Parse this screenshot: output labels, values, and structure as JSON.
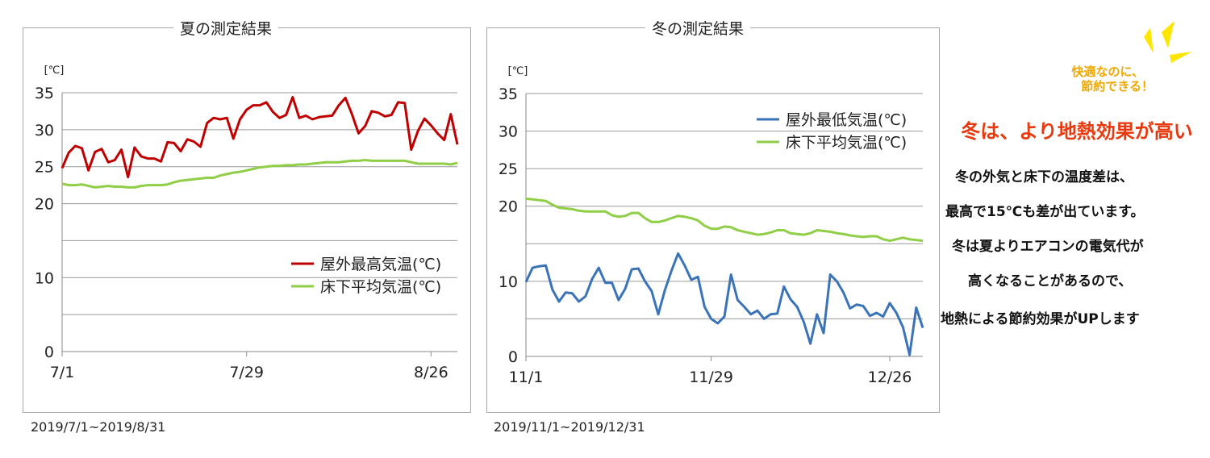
{
  "chart_data": [
    {
      "type": "line",
      "title": "夏の測定結果",
      "y_unit": "[℃]",
      "ylim": [
        0,
        35
      ],
      "y_ticks": [
        "0",
        "10",
        "20",
        "25",
        "30",
        "35"
      ],
      "x_tick_labels": [
        "7/1",
        "7/29",
        "8/26"
      ],
      "x_tick_days": [
        1,
        29,
        57
      ],
      "x_range": [
        1,
        61
      ],
      "grid": true,
      "legend_position": "bottom-right",
      "series": [
        {
          "name": "屋外最高気温(℃)",
          "color": "#c00000",
          "values": [
            24.8,
            26.9,
            27.8,
            27.5,
            24.5,
            27.0,
            27.4,
            25.6,
            25.9,
            27.3,
            23.6,
            27.6,
            26.4,
            26.1,
            26.1,
            25.7,
            28.3,
            28.2,
            27.1,
            28.7,
            28.4,
            27.7,
            30.9,
            31.6,
            31.4,
            31.6,
            28.8,
            31.4,
            32.7,
            33.3,
            33.3,
            33.7,
            32.4,
            31.6,
            32.0,
            34.4,
            31.6,
            31.9,
            31.4,
            31.7,
            31.8,
            31.9,
            33.3,
            34.3,
            32.1,
            29.5,
            30.5,
            32.5,
            32.3,
            31.8,
            32.0,
            33.7,
            33.6,
            27.3,
            29.8,
            31.5,
            30.6,
            29.5,
            28.6,
            32.1,
            28.0
          ]
        },
        {
          "name": "床下平均気温(℃)",
          "color": "#8fce46",
          "values": [
            22.7,
            22.5,
            22.5,
            22.6,
            22.4,
            22.2,
            22.3,
            22.4,
            22.3,
            22.3,
            22.2,
            22.2,
            22.4,
            22.5,
            22.5,
            22.5,
            22.6,
            22.9,
            23.1,
            23.2,
            23.3,
            23.4,
            23.5,
            23.5,
            23.8,
            24.0,
            24.2,
            24.3,
            24.5,
            24.7,
            24.9,
            25.0,
            25.1,
            25.1,
            25.2,
            25.2,
            25.3,
            25.3,
            25.4,
            25.5,
            25.6,
            25.6,
            25.6,
            25.7,
            25.8,
            25.8,
            25.9,
            25.8,
            25.8,
            25.8,
            25.8,
            25.8,
            25.8,
            25.6,
            25.4,
            25.4,
            25.4,
            25.4,
            25.4,
            25.3,
            25.5
          ]
        }
      ]
    },
    {
      "type": "line",
      "title": "冬の測定結果",
      "y_unit": "[℃]",
      "ylim": [
        0,
        35
      ],
      "y_ticks": [
        "0",
        "10",
        "20",
        "25",
        "30",
        "35"
      ],
      "x_tick_labels": [
        "11/1",
        "11/29",
        "12/26"
      ],
      "x_tick_days": [
        1,
        29,
        56
      ],
      "x_range": [
        1,
        61
      ],
      "grid": true,
      "legend_position": "top-right",
      "series": [
        {
          "name": "屋外最低気温(℃)",
          "color": "#3a73b8",
          "values": [
            9.9,
            11.8,
            12.0,
            12.1,
            8.9,
            7.3,
            8.5,
            8.4,
            7.3,
            8.0,
            10.3,
            11.8,
            9.8,
            9.8,
            7.5,
            9.0,
            11.6,
            11.7,
            10.0,
            8.7,
            5.6,
            8.8,
            11.4,
            13.7,
            12.1,
            10.2,
            10.6,
            6.6,
            5.0,
            4.4,
            5.3,
            10.9,
            7.5,
            6.6,
            5.6,
            6.1,
            5.0,
            5.6,
            5.7,
            9.3,
            7.6,
            6.6,
            4.6,
            1.7,
            5.6,
            3.1,
            10.9,
            10.0,
            8.5,
            6.4,
            6.9,
            6.7,
            5.4,
            5.8,
            5.3,
            7.1,
            5.8,
            3.9,
            0.2,
            6.5,
            3.8
          ]
        },
        {
          "name": "床下平均気温(℃)",
          "color": "#8fce46",
          "values": [
            21.0,
            20.9,
            20.8,
            20.7,
            20.2,
            19.8,
            19.7,
            19.6,
            19.4,
            19.3,
            19.3,
            19.3,
            19.3,
            18.8,
            18.6,
            18.7,
            19.1,
            19.1,
            18.4,
            17.9,
            17.9,
            18.1,
            18.4,
            18.7,
            18.6,
            18.4,
            18.1,
            17.4,
            17.0,
            17.0,
            17.3,
            17.2,
            16.8,
            16.6,
            16.4,
            16.2,
            16.3,
            16.5,
            16.8,
            16.8,
            16.4,
            16.3,
            16.2,
            16.4,
            16.8,
            16.7,
            16.6,
            16.4,
            16.3,
            16.1,
            16.0,
            15.9,
            16.0,
            16.0,
            15.6,
            15.4,
            15.6,
            15.8,
            15.6,
            15.5,
            15.4
          ]
        }
      ]
    }
  ],
  "periods": {
    "summer": "2019/7/1~2019/8/31",
    "winter": "2019/11/1~2019/12/31"
  },
  "side": {
    "tagline_line1": "快適なのに、",
    "tagline_line2": "節約できる！",
    "headline": "冬は、より地熱効果が高い",
    "lines": [
      "冬の外気と床下の温度差は、",
      "最高で15℃も差が出ています。",
      "冬は夏よりエアコンの電気代が",
      "高くなることがあるので、",
      "地熱による節約効果がUPします"
    ]
  }
}
